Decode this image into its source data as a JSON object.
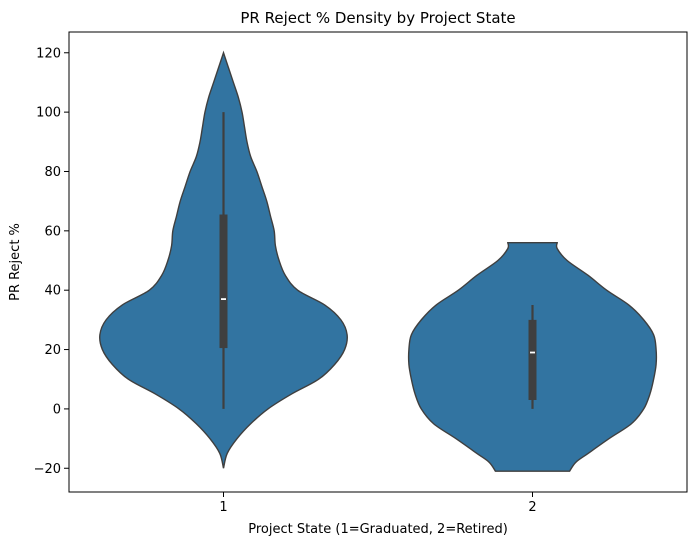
{
  "chart_data": {
    "type": "violin",
    "title": "PR Reject % Density by Project State",
    "xlabel": "Project State (1=Graduated, 2=Retired)",
    "ylabel": "PR Reject %",
    "categories": [
      "1",
      "2"
    ],
    "ylim": [
      -28,
      127
    ],
    "yticks": [
      -20,
      0,
      20,
      40,
      60,
      80,
      100,
      120
    ],
    "ytick_labels": [
      "−20",
      "0",
      "20",
      "40",
      "60",
      "80",
      "100",
      "120"
    ],
    "grid": false,
    "colors": {
      "fill": "#3274a1",
      "edge": "#3f3f3f",
      "box": "#3f3f3f",
      "median": "#ffffff"
    },
    "violins": [
      {
        "category": "1",
        "min": 0,
        "q1": 20.5,
        "median": 37,
        "q3": 65.5,
        "max": 100,
        "density_y": [
          -20,
          -15,
          -10,
          -5,
          0,
          5,
          10,
          15,
          20,
          25,
          30,
          35,
          40,
          45,
          50,
          55,
          60,
          65,
          70,
          75,
          80,
          85,
          90,
          95,
          100,
          105,
          110,
          115,
          120
        ],
        "density_width": [
          0.0,
          0.03,
          0.11,
          0.22,
          0.36,
          0.55,
          0.77,
          0.9,
          0.98,
          1.0,
          0.95,
          0.82,
          0.6,
          0.5,
          0.45,
          0.42,
          0.41,
          0.38,
          0.35,
          0.31,
          0.27,
          0.22,
          0.19,
          0.17,
          0.15,
          0.12,
          0.08,
          0.04,
          0.0
        ]
      },
      {
        "category": "2",
        "min": 0,
        "q1": 3,
        "median": 19,
        "q3": 30,
        "max": 35,
        "density_y": [
          -21,
          -18,
          -15,
          -10,
          -5,
          0,
          5,
          10,
          15,
          20,
          25,
          30,
          35,
          40,
          45,
          50,
          54,
          56
        ],
        "density_width": [
          0.3,
          0.35,
          0.45,
          0.62,
          0.8,
          0.9,
          0.95,
          0.98,
          1.0,
          1.0,
          0.98,
          0.9,
          0.78,
          0.6,
          0.45,
          0.28,
          0.2,
          0.2
        ]
      }
    ]
  }
}
